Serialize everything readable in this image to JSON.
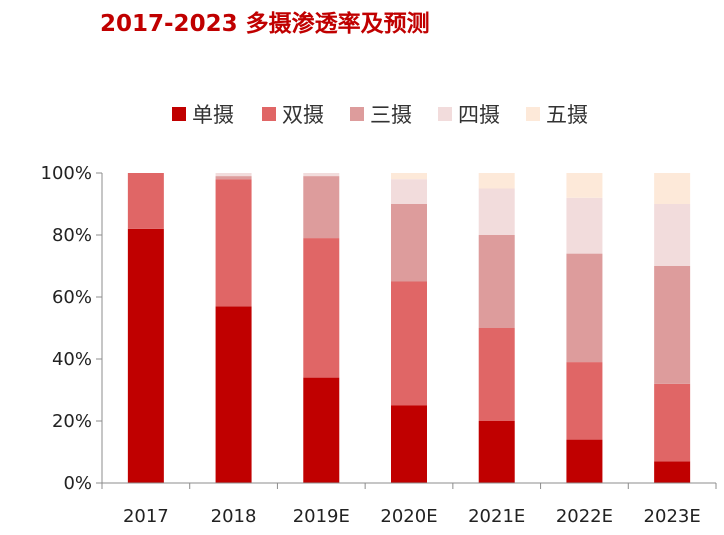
{
  "chart_data": {
    "type": "bar",
    "stacked": true,
    "title": "2017-2023 多摄渗透率及预测",
    "xlabel": "",
    "ylabel": "",
    "categories": [
      "2017",
      "2018",
      "2019E",
      "2020E",
      "2021E",
      "2022E",
      "2023E"
    ],
    "y_ticks": [
      "0%",
      "20%",
      "40%",
      "60%",
      "80%",
      "100%"
    ],
    "ylim": [
      0,
      100
    ],
    "grid": false,
    "legend_position": "top-center",
    "series": [
      {
        "name": "单摄",
        "color": "#c00000",
        "values": [
          82,
          57,
          34,
          25,
          20,
          14,
          7
        ]
      },
      {
        "name": "双摄",
        "color": "#e06666",
        "values": [
          18,
          41,
          45,
          40,
          30,
          25,
          25
        ]
      },
      {
        "name": "三摄",
        "color": "#dd9c9c",
        "values": [
          0,
          1,
          20,
          25,
          30,
          35,
          38
        ]
      },
      {
        "name": "四摄",
        "color": "#f2dcdc",
        "values": [
          0,
          1,
          1,
          8,
          15,
          18,
          20
        ]
      },
      {
        "name": "五摄",
        "color": "#fde9d9",
        "values": [
          0,
          0,
          0,
          2,
          5,
          8,
          10
        ]
      }
    ]
  }
}
